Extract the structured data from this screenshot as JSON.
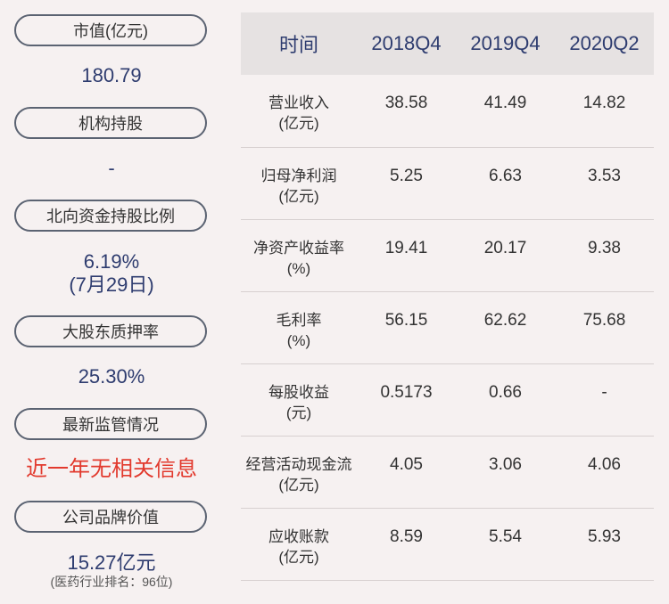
{
  "left_panel": {
    "market_cap": {
      "label": "市值(亿元)",
      "value": "180.79"
    },
    "institutional": {
      "label": "机构持股",
      "value": "-"
    },
    "northbound": {
      "label": "北向资金持股比例",
      "value": "6.19%",
      "date": "(7月29日)"
    },
    "pledge": {
      "label": "大股东质押率",
      "value": "25.30%"
    },
    "regulatory": {
      "label": "最新监管情况",
      "value": "近一年无相关信息"
    },
    "brand": {
      "label": "公司品牌价值",
      "value": "15.27亿元",
      "rank": "(医药行业排名：96位)"
    }
  },
  "table": {
    "headers": [
      "时间",
      "2018Q4",
      "2019Q4",
      "2020Q2"
    ],
    "rows": [
      {
        "label1": "营业收入",
        "label2": "(亿元)",
        "values": [
          "38.58",
          "41.49",
          "14.82"
        ]
      },
      {
        "label1": "归母净利润",
        "label2": "(亿元)",
        "values": [
          "5.25",
          "6.63",
          "3.53"
        ]
      },
      {
        "label1": "净资产收益率",
        "label2": "(%)",
        "values": [
          "19.41",
          "20.17",
          "9.38"
        ]
      },
      {
        "label1": "毛利率",
        "label2": "(%)",
        "values": [
          "56.15",
          "62.62",
          "75.68"
        ]
      },
      {
        "label1": "每股收益",
        "label2": "(元)",
        "values": [
          "0.5173",
          "0.66",
          "-"
        ]
      },
      {
        "label1": "经营活动现金流",
        "label2": "(亿元)",
        "values": [
          "4.05",
          "3.06",
          "4.06"
        ]
      },
      {
        "label1": "应收账款",
        "label2": "(亿元)",
        "values": [
          "8.59",
          "5.54",
          "5.93"
        ]
      }
    ]
  },
  "colors": {
    "background": "#f6f1f1",
    "value_blue": "#2e3c6f",
    "alert_red": "#e23a2e",
    "header_bg": "#e6e2e2"
  }
}
